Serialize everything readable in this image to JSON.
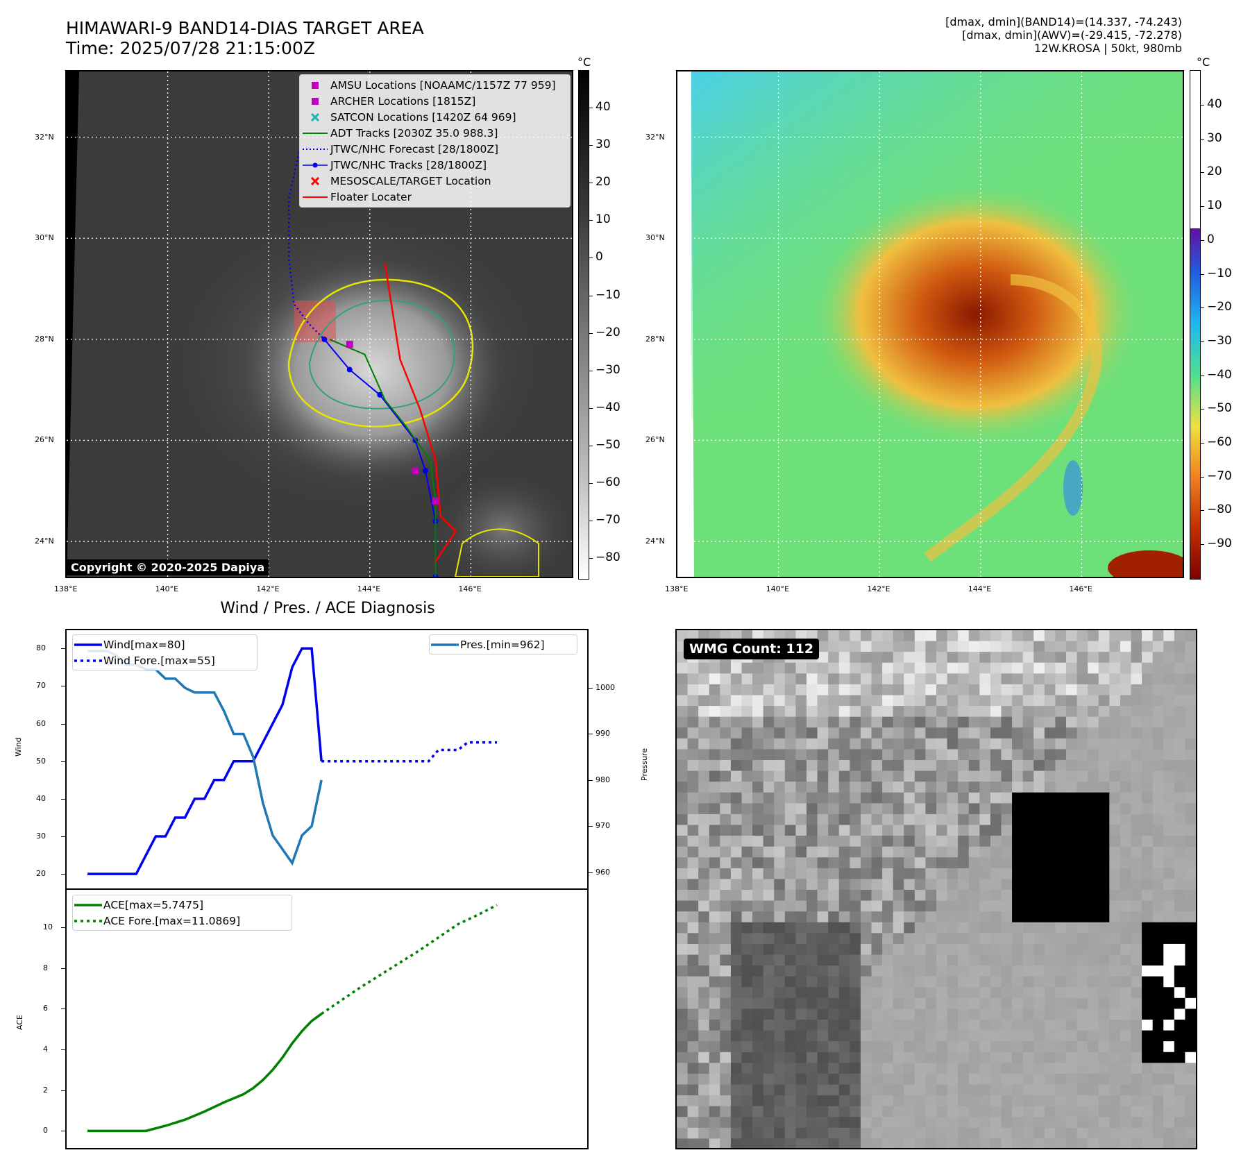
{
  "header": {
    "title_line1": "HIMAWARI-9 BAND14-DIAS TARGET AREA",
    "title_line2": "Time: 2025/07/28 21:15:00Z",
    "info_line1": "[dmax, dmin](BAND14)=(14.337, -74.243)",
    "info_line2": "[dmax, dmin](AWV)=(-29.415, -72.278)",
    "info_line3": "12W.KROSA | 50kt, 980mb"
  },
  "map_axes": {
    "lat_labels": [
      "32°N",
      "30°N",
      "28°N",
      "26°N",
      "24°N"
    ],
    "lon_labels": [
      "138°E",
      "140°E",
      "142°E",
      "144°E",
      "146°E"
    ],
    "lon_range": [
      138,
      148
    ],
    "lat_range": [
      23.3,
      33.3
    ]
  },
  "colorbar_gray": {
    "unit": "°C",
    "ticks": [
      "40",
      "30",
      "20",
      "10",
      "0",
      "−10",
      "−20",
      "−30",
      "−40",
      "−50",
      "−60",
      "−70",
      "−80"
    ]
  },
  "colorbar_color": {
    "unit": "°C",
    "ticks": [
      "40",
      "30",
      "20",
      "10",
      "0",
      "−10",
      "−20",
      "−30",
      "−40",
      "−50",
      "−60",
      "−70",
      "−80",
      "−90"
    ]
  },
  "legend_map": [
    {
      "label": "AMSU Locations [NOAAMC/1157Z 77 959]",
      "symbol": "square",
      "color": "#c000c0"
    },
    {
      "label": "ARCHER Locations [1815Z]",
      "symbol": "square",
      "color": "#c000c0"
    },
    {
      "label": "SATCON Locations [1420Z 64 969]",
      "symbol": "x",
      "color": "#20b0b0"
    },
    {
      "label": "ADT Tracks [2030Z 35.0 988.3]",
      "symbol": "line",
      "color": "#008000"
    },
    {
      "label": "JTWC/NHC Forecast [28/1800Z]",
      "symbol": "dotted",
      "color": "#0000ee"
    },
    {
      "label": "JTWC/NHC Tracks [28/1800Z]",
      "symbol": "line-dot",
      "color": "#0000ee"
    },
    {
      "label": "MESOSCALE/TARGET Location",
      "symbol": "x",
      "color": "#ff0000"
    },
    {
      "label": "Floater Locater",
      "symbol": "line",
      "color": "#ff0000"
    }
  ],
  "copyright": "Copyright © 2020-2025 Dapiya",
  "diagnosis": {
    "title": "Wind / Pres. / ACE Diagnosis",
    "wind_ylabel": "Wind",
    "pres_ylabel": "Pressure",
    "ace_ylabel": "ACE",
    "wind_ticks": [
      "80",
      "70",
      "60",
      "50",
      "40",
      "30",
      "20"
    ],
    "pres_ticks": [
      "1000",
      "990",
      "980",
      "970",
      "960"
    ],
    "ace_ticks": [
      "10",
      "8",
      "6",
      "4",
      "2",
      "0"
    ],
    "legend_wind": "Wind[max=80]",
    "legend_wind_fore": "Wind Fore.[max=55]",
    "legend_pres": "Pres.[min=962]",
    "legend_ace": "ACE[max=5.7475]",
    "legend_ace_fore": "ACE Fore.[max=11.0869]"
  },
  "wmg_label": "WMG Count: 112",
  "colors": {
    "wind": "#0000ee",
    "pres": "#1f77b4",
    "ace": "#008000",
    "track": "#0000ee",
    "floater": "#ff0000"
  },
  "chart_data": [
    {
      "type": "line",
      "title": "Wind / Pres. / ACE Diagnosis",
      "ylabel": "Wind",
      "ylim": [
        18,
        83
      ],
      "series": [
        {
          "name": "Wind[max=80]",
          "x": [
            0,
            3,
            5,
            6,
            7,
            8,
            9,
            10,
            11,
            12,
            13,
            14,
            15,
            16,
            17,
            18,
            19,
            20,
            21,
            22,
            23,
            24
          ],
          "values": [
            20,
            20,
            20,
            25,
            30,
            30,
            35,
            35,
            40,
            40,
            45,
            45,
            50,
            50,
            50,
            55,
            60,
            65,
            75,
            80,
            80,
            50
          ]
        },
        {
          "name": "Wind Fore.[max=55]",
          "x": [
            24,
            25,
            26,
            27,
            28,
            29,
            30,
            31,
            32,
            33,
            34,
            35,
            36,
            37,
            38,
            39,
            40,
            41,
            42
          ],
          "values": [
            50,
            50,
            50,
            50,
            50,
            50,
            50,
            50,
            50,
            50,
            50,
            50,
            53,
            53,
            53,
            55,
            55,
            55,
            55
          ]
        }
      ]
    },
    {
      "type": "line",
      "ylabel": "Pressure",
      "ylim": [
        960,
        1008
      ],
      "series": [
        {
          "name": "Pres.[min=962]",
          "x": [
            0,
            1,
            2,
            3,
            4,
            5,
            6,
            7,
            8,
            9,
            10,
            11,
            12,
            13,
            14,
            15,
            16,
            17,
            18,
            19,
            20,
            21,
            22,
            23,
            24
          ],
          "values": [
            1008,
            1008,
            1008,
            1007,
            1005,
            1005,
            1004,
            1004,
            1002,
            1002,
            1000,
            999,
            999,
            999,
            995,
            990,
            990,
            985,
            975,
            968,
            965,
            962,
            968,
            970,
            980
          ]
        }
      ]
    },
    {
      "type": "line",
      "ylabel": "ACE",
      "ylim": [
        -0.5,
        11.5
      ],
      "series": [
        {
          "name": "ACE[max=5.7475]",
          "x": [
            0,
            3,
            6,
            8,
            10,
            12,
            14,
            16,
            17,
            18,
            19,
            20,
            21,
            22,
            23,
            24
          ],
          "values": [
            0,
            0,
            0,
            0.25,
            0.55,
            0.95,
            1.4,
            1.8,
            2.1,
            2.5,
            3.0,
            3.6,
            4.3,
            4.9,
            5.4,
            5.75
          ]
        },
        {
          "name": "ACE Fore.[max=11.0869]",
          "x": [
            24,
            26,
            28,
            30,
            32,
            34,
            36,
            38,
            40,
            42
          ],
          "values": [
            5.75,
            6.4,
            7.05,
            7.65,
            8.25,
            8.85,
            9.5,
            10.15,
            10.6,
            11.09
          ]
        }
      ]
    }
  ]
}
